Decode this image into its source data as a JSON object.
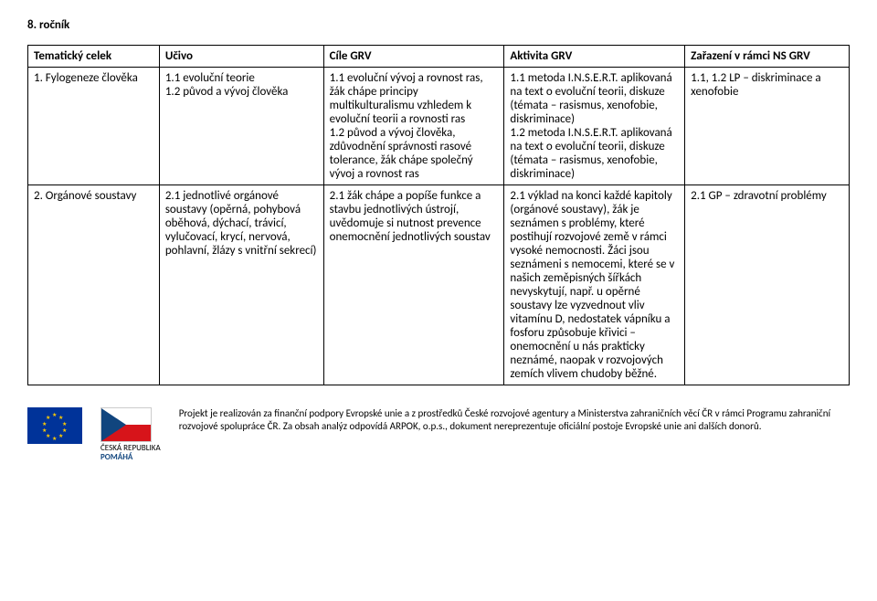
{
  "heading": "8. ročník",
  "columns": [
    "Tematický celek",
    "Učivo",
    "Cíle GRV",
    "Aktivita GRV",
    "Zařazení v rámci NS GRV"
  ],
  "rows": [
    {
      "c1": "1. Fylogeneze člověka",
      "c2": "1.1 evoluční teorie\n1.2 původ a vývoj člověka",
      "c3": "1.1 evoluční vývoj a rovnost ras, žák chápe principy multikulturalismu vzhledem k evoluční teorii a rovnosti ras\n1.2 původ a vývoj člověka, zdůvodnění správnosti rasové tolerance, žák chápe společný vývoj a rovnost ras",
      "c4": "1.1 metoda I.N.S.E.R.T. aplikovaná na text o evoluční teorii, diskuze (témata – rasismus, xenofobie, diskriminace)\n1.2 metoda I.N.S.E.R.T. aplikovaná na text o evoluční teorii, diskuze (témata – rasismus, xenofobie, diskriminace)",
      "c5": "1.1, 1.2 LP – diskriminace a xenofobie"
    },
    {
      "c1": "2. Orgánové soustavy",
      "c2": "2.1 jednotlivé orgánové soustavy (opěrná, pohybová oběhová, dýchací, trávicí, vylučovací, krycí, nervová, pohlavní, žlázy s vnitřní sekrecí)",
      "c3": "2.1 žák chápe a popíše funkce a stavbu jednotlivých ústrojí, uvědomuje si nutnost prevence onemocnění jednotlivých soustav",
      "c4": "2.1 výklad na konci každé kapitoly (orgánové soustavy), žák je seznámen s problémy, které postihují rozvojové země v rámci vysoké nemocnosti. Žáci jsou seznámeni s nemocemi, které se v našich zeměpisných šířkách nevyskytují, např. u opěrné soustavy lze vyzvednout vliv vitamínu D, nedostatek vápníku a fosforu způsobuje křivici – onemocnění u nás prakticky neznámé, naopak v rozvojových zemích vlivem chudoby běžné.",
      "c5": "2.1 GP – zdravotní problémy"
    }
  ],
  "logo_cz_line1": "ČESKÁ REPUBLIKA",
  "logo_cz_line2": "POMÁHÁ",
  "footer_text": "Projekt je realizován za finanční podpory Evropské unie a z prostředků České rozvojové agentury a Ministerstva zahraničních věcí ČR v rámci Programu zahraniční rozvojové spolupráce ČR. Za obsah analýz odpovídá ARPOK, o.p.s., dokument nereprezentuje oficiální postoje Evropské unie ani dalších donorů."
}
